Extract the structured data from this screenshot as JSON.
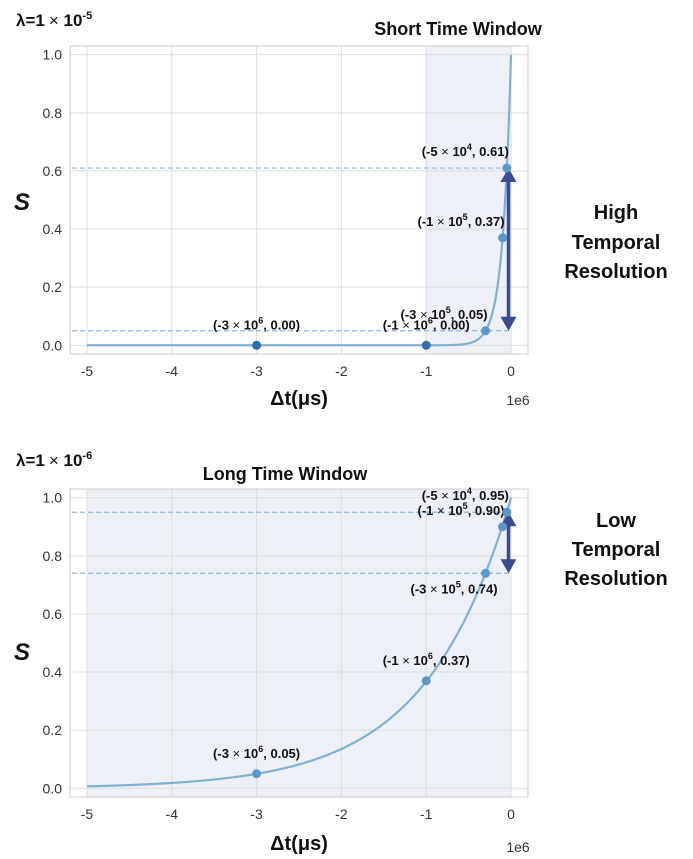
{
  "colors": {
    "curve": "#7fb0d6",
    "point": "#5b97c8",
    "point_dark": "#2e6ea6",
    "shade": "#eef0f7",
    "arrow": "#3b4b8f",
    "dashed": "#8ab8e6",
    "grid": "#dddddd",
    "frame": "#cccccc"
  },
  "chart_data": [
    {
      "type": "line",
      "lambda_label": {
        "prefix": "λ=1",
        "times": "×",
        "base": " 10",
        "exp": "-5"
      },
      "title": "Short Time Window",
      "xlabel": "Δt(μs)",
      "ylabel": "S",
      "x_multiplier": "1e6",
      "xlim": [
        -5.2,
        0.2
      ],
      "ylim": [
        -0.03,
        1.03
      ],
      "xticks": [
        -5,
        -4,
        -3,
        -2,
        -1,
        0
      ],
      "xtick_labels": [
        "-5",
        "-4",
        "-3",
        "-2",
        "-1",
        "0"
      ],
      "yticks": [
        0.0,
        0.2,
        0.4,
        0.6,
        0.8,
        1.0
      ],
      "ytick_labels": [
        "0.0",
        "0.2",
        "0.4",
        "0.6",
        "0.8",
        "1.0"
      ],
      "lambda": 1e-05,
      "curve_range": [
        -5,
        0
      ],
      "shaded_x": [
        -1,
        0
      ],
      "hlines": [
        0.61,
        0.05
      ],
      "arrow": {
        "x": -0.03,
        "from": 0.61,
        "to": 0.05
      },
      "side_text": [
        "High",
        "Temporal",
        "Resolution"
      ],
      "points": [
        {
          "x": -3,
          "y": 0.0,
          "label": {
            "pre": "(-3",
            "times": " × ",
            "base": "10",
            "exp": "6",
            "post": ", 0.00)"
          },
          "anchor": "above"
        },
        {
          "x": -1,
          "y": 0.0,
          "label": {
            "pre": "(-1",
            "times": " × ",
            "base": "10",
            "exp": "6",
            "post": ", 0.00)"
          },
          "anchor": "above"
        },
        {
          "x": -0.3,
          "y": 0.05,
          "label": {
            "pre": "(-3",
            "times": " × ",
            "base": "10",
            "exp": "5",
            "post": ", 0.05)"
          },
          "anchor": "left-above"
        },
        {
          "x": -0.1,
          "y": 0.37,
          "label": {
            "pre": "(-1",
            "times": " × ",
            "base": "10",
            "exp": "5",
            "post": ", 0.37)"
          },
          "anchor": "left-above"
        },
        {
          "x": -0.05,
          "y": 0.61,
          "label": {
            "pre": "(-5",
            "times": " × ",
            "base": "10",
            "exp": "4",
            "post": ", 0.61)"
          },
          "anchor": "left-above"
        }
      ]
    },
    {
      "type": "line",
      "lambda_label": {
        "prefix": "λ=1",
        "times": "×",
        "base": " 10",
        "exp": "-6"
      },
      "title": "Long Time Window",
      "xlabel": "Δt(μs)",
      "ylabel": "S",
      "x_multiplier": "1e6",
      "xlim": [
        -5.2,
        0.2
      ],
      "ylim": [
        -0.03,
        1.03
      ],
      "xticks": [
        -5,
        -4,
        -3,
        -2,
        -1,
        0
      ],
      "xtick_labels": [
        "-5",
        "-4",
        "-3",
        "-2",
        "-1",
        "0"
      ],
      "yticks": [
        0.0,
        0.2,
        0.4,
        0.6,
        0.8,
        1.0
      ],
      "ytick_labels": [
        "0.0",
        "0.2",
        "0.4",
        "0.6",
        "0.8",
        "1.0"
      ],
      "lambda": 1e-06,
      "curve_range": [
        -5,
        0
      ],
      "shaded_x": [
        -5,
        0
      ],
      "hlines": [
        0.95,
        0.74
      ],
      "arrow": {
        "x": -0.03,
        "from": 0.95,
        "to": 0.74
      },
      "side_text": [
        "Low",
        "Temporal",
        "Resolution"
      ],
      "points": [
        {
          "x": -3,
          "y": 0.05,
          "label": {
            "pre": "(-3",
            "times": " × ",
            "base": "10",
            "exp": "6",
            "post": ", 0.05)"
          },
          "anchor": "above"
        },
        {
          "x": -1,
          "y": 0.37,
          "label": {
            "pre": "(-1",
            "times": " × ",
            "base": "10",
            "exp": "6",
            "post": ", 0.37)"
          },
          "anchor": "above"
        },
        {
          "x": -0.3,
          "y": 0.74,
          "label": {
            "pre": "(-3",
            "times": " × ",
            "base": "10",
            "exp": "5",
            "post": ", 0.74)"
          },
          "anchor": "left-below"
        },
        {
          "x": -0.1,
          "y": 0.9,
          "label": {
            "pre": "(-1",
            "times": " × ",
            "base": "10",
            "exp": "5",
            "post": ", 0.90)"
          },
          "anchor": "left-above"
        },
        {
          "x": -0.05,
          "y": 0.95,
          "label": {
            "pre": "(-5",
            "times": " × ",
            "base": "10",
            "exp": "4",
            "post": ", 0.95)"
          },
          "anchor": "left-above"
        }
      ]
    }
  ]
}
